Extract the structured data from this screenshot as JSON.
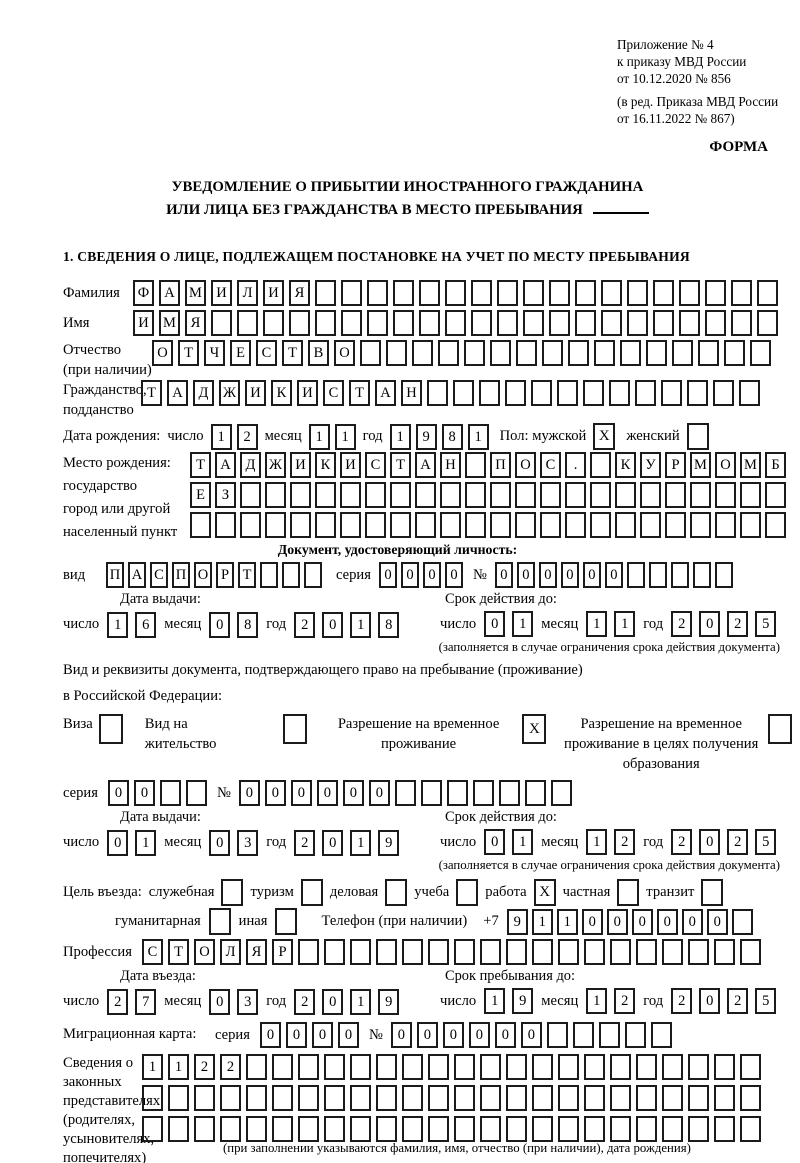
{
  "header": {
    "ref_lines": [
      "Приложение № 4",
      "к приказу МВД России",
      "от 10.12.2020 № 856"
    ],
    "amend_lines": [
      "(в ред. Приказа МВД России",
      "от 16.11.2022 № 867)"
    ],
    "forma": "ФОРМА"
  },
  "title": {
    "line1": "УВЕДОМЛЕНИЕ О ПРИБЫТИИ ИНОСТРАННОГО ГРАЖДАНИНА",
    "line2": "ИЛИ ЛИЦА БЕЗ ГРАЖДАНСТВА В МЕСТО ПРЕБЫВАНИЯ"
  },
  "section1_heading": "1. СВЕДЕНИЯ О ЛИЦЕ, ПОДЛЕЖАЩЕМ ПОСТАНОВКЕ НА УЧЕТ ПО МЕСТУ ПРЕБЫВАНИЯ",
  "labels": {
    "day": "число",
    "month": "месяц",
    "year": "год",
    "series": "серия",
    "number": "№"
  },
  "fields": {
    "surname": {
      "label": "Фамилия",
      "chars": "ФАМИЛИЯ",
      "total": 25
    },
    "firstname": {
      "label": "Имя",
      "chars": "ИМЯ",
      "total": 25
    },
    "patronymic": {
      "label1": "Отчество",
      "label2": "(при наличии)",
      "chars": "ОТЧЕСТВО",
      "total": 24
    },
    "citizenship": {
      "label1": "Гражданство,",
      "label2": "подданство",
      "chars": "ТАДЖИКИСТАН",
      "total": 24
    },
    "profession": {
      "label": "Профессия",
      "chars": "СТОЛЯР",
      "total": 24
    }
  },
  "birth_date": {
    "label": "Дата рождения:",
    "day": "12",
    "month": "11",
    "year": "1981",
    "sex_label": "Пол: мужской",
    "male_checked": true,
    "female_label": "женский",
    "female_checked": false
  },
  "birth_place": {
    "label_lines": [
      "Место рождения:",
      "государство",
      "город или другой",
      "населенный пункт"
    ],
    "rows": [
      {
        "chars": "ТАДЖИКИСТАН ПОС. КУРМОМБ",
        "total": 24
      },
      {
        "chars": "ЕЗ",
        "total": 24
      },
      {
        "chars": "",
        "total": 24
      }
    ]
  },
  "identity_doc": {
    "heading": "Документ, удостоверяющий личность:",
    "kind_label": "вид",
    "kind": {
      "chars": "ПАСПОРТ",
      "total": 10
    },
    "series": {
      "chars": "0000",
      "total": 4
    },
    "number": {
      "chars": "000000",
      "total": 11
    },
    "issue_title": "Дата выдачи:",
    "expiry_title": "Срок действия до:",
    "issue": {
      "day": "16",
      "month": "08",
      "year": "2018"
    },
    "expiry": {
      "day": "01",
      "month": "11",
      "year": "2025"
    },
    "note": "(заполняется в случае ограничения срока действия документа)"
  },
  "permit": {
    "intro1": "Вид и реквизиты документа, подтверждающего право на пребывание (проживание)",
    "intro2": "в Российской Федерации:",
    "items": [
      {
        "label": "Виза",
        "checked": false
      },
      {
        "label": "Вид на жительство",
        "checked": false
      },
      {
        "label": "Разрешение на временное проживание",
        "checked": true
      },
      {
        "label": "Разрешение на временное проживание в целях получения образования",
        "checked": false
      }
    ],
    "series": {
      "chars": "00",
      "total": 4
    },
    "number": {
      "chars": "000000",
      "total": 13
    },
    "issue_title": "Дата выдачи:",
    "expiry_title": "Срок действия до:",
    "issue": {
      "day": "01",
      "month": "03",
      "year": "2019"
    },
    "expiry": {
      "day": "01",
      "month": "12",
      "year": "2025"
    },
    "note": "(заполняется в случае ограничения срока действия документа)"
  },
  "purpose": {
    "label": "Цель въезда:",
    "items": [
      {
        "label": "служебная",
        "checked": false
      },
      {
        "label": "туризм",
        "checked": false
      },
      {
        "label": "деловая",
        "checked": false
      },
      {
        "label": "учеба",
        "checked": false
      },
      {
        "label": "работа",
        "checked": true
      },
      {
        "label": "частная",
        "checked": false
      },
      {
        "label": "транзит",
        "checked": false
      }
    ],
    "items2": [
      {
        "label": "гуманитарная",
        "checked": false
      },
      {
        "label": "иная",
        "checked": false
      }
    ],
    "phone_label": "Телефон (при наличии)",
    "phone_prefix": "+7",
    "phone": {
      "chars": "911000000",
      "total": 10
    }
  },
  "entry": {
    "left_title": "Дата въезда:",
    "right_title": "Срок пребывания до:",
    "left": {
      "day": "27",
      "month": "03",
      "year": "2019"
    },
    "right": {
      "day": "19",
      "month": "12",
      "year": "2025"
    }
  },
  "migration_card": {
    "label": "Миграционная карта:",
    "series": {
      "chars": "0000",
      "total": 4
    },
    "number": {
      "chars": "000000",
      "total": 11
    }
  },
  "representatives": {
    "label_lines": [
      "Сведения о",
      "законных",
      "представителях",
      "(родителях,",
      "усыновителях,",
      "попечителях)"
    ],
    "rows": [
      {
        "chars": "1122",
        "total": 24
      },
      {
        "chars": "",
        "total": 24
      },
      {
        "chars": "",
        "total": 24
      }
    ],
    "caption": "(при заполнении указываются фамилия, имя, отчество (при наличии), дата рождения)"
  }
}
